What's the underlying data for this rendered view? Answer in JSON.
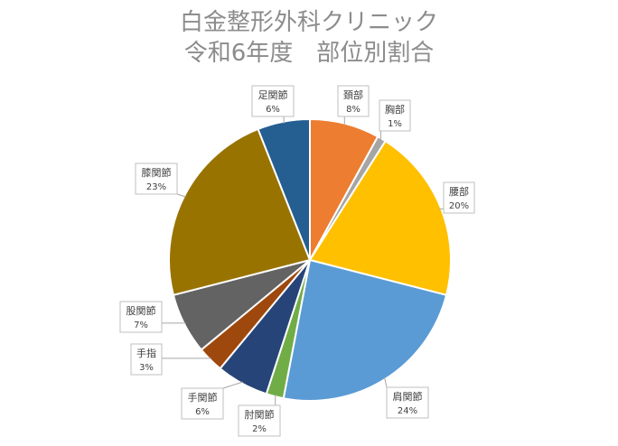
{
  "chart_data": {
    "type": "pie",
    "title_lines": [
      "白金整形外科クリニック",
      "令和6年度　部位別割合"
    ],
    "start": "top",
    "direction": "clockwise",
    "slices": [
      {
        "label": "頚部",
        "value": 8,
        "value_text": "8%",
        "color": "#ED7D31"
      },
      {
        "label": "胸部",
        "value": 1,
        "value_text": "1%",
        "color": "#A5A5A5"
      },
      {
        "label": "腰部",
        "value": 20,
        "value_text": "20%",
        "color": "#FFC000"
      },
      {
        "label": "肩関節",
        "value": 24,
        "value_text": "24%",
        "color": "#5B9BD5"
      },
      {
        "label": "肘関節",
        "value": 2,
        "value_text": "2%",
        "color": "#70AD47"
      },
      {
        "label": "手関節",
        "value": 6,
        "value_text": "6%",
        "color": "#264478"
      },
      {
        "label": "手指",
        "value": 3,
        "value_text": "3%",
        "color": "#9E480E"
      },
      {
        "label": "股関節",
        "value": 7,
        "value_text": "7%",
        "color": "#636363"
      },
      {
        "label": "膝関節",
        "value": 23,
        "value_text": "23%",
        "color": "#997300"
      },
      {
        "label": "足関節",
        "value": 6,
        "value_text": "6%",
        "color": "#255E91"
      }
    ]
  }
}
